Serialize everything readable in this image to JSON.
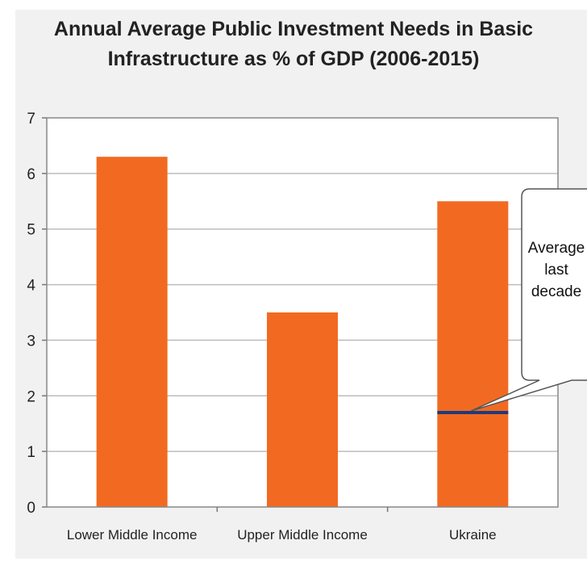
{
  "chart_data": {
    "type": "bar",
    "title_line1": "Annual Average Public Investment Needs in Basic",
    "title_line2": "Infrastructure as % of GDP (2006-2015)",
    "categories": [
      "Lower Middle Income",
      "Upper Middle Income",
      "Ukraine"
    ],
    "values": [
      6.3,
      3.5,
      5.5
    ],
    "ylim": [
      0,
      7
    ],
    "yticks": [
      0,
      1,
      2,
      3,
      4,
      5,
      6,
      7
    ],
    "xlabel": "",
    "ylabel": "",
    "grid": true,
    "bar_color": "#f26a21",
    "reference_line": {
      "category": "Ukraine",
      "value": 1.7,
      "color": "#1f3a7a"
    },
    "annotation": {
      "lines": [
        "Average",
        "last",
        "decade"
      ]
    }
  }
}
